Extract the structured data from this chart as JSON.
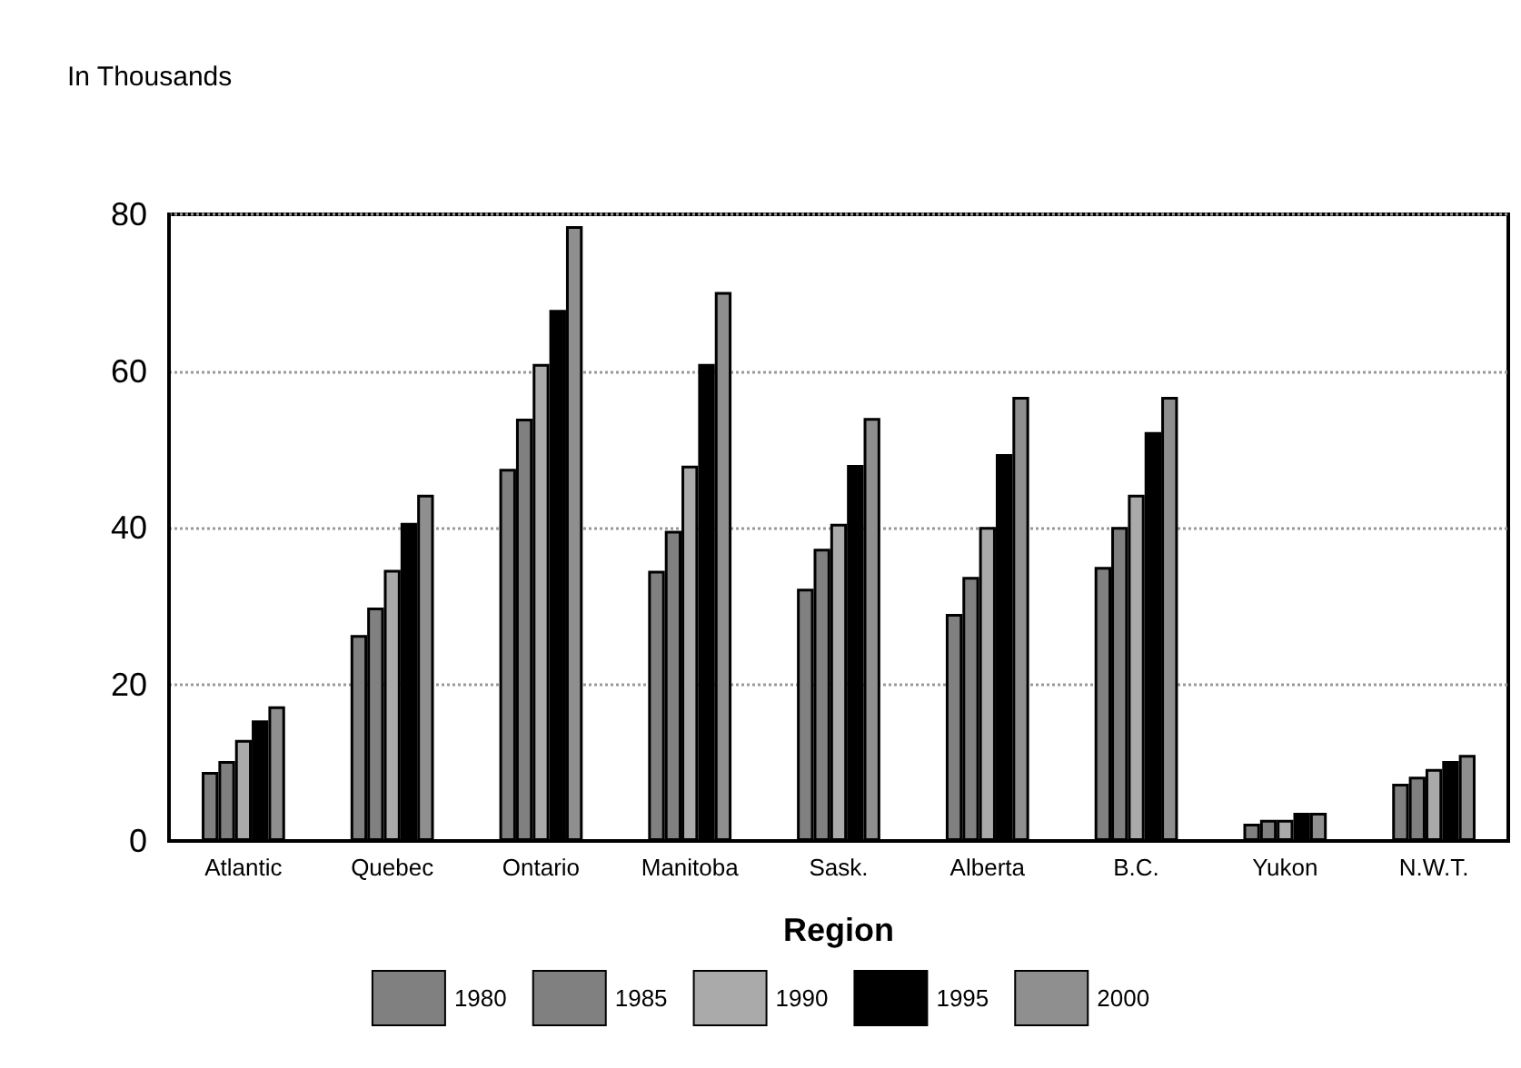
{
  "chart_data": {
    "type": "bar",
    "ylabel": "In Thousands",
    "xlabel": "Region",
    "categories": [
      "Atlantic",
      "Quebec",
      "Ontario",
      "Manitoba",
      "Sask.",
      "Alberta",
      "B.C.",
      "Yukon",
      "N.W.T."
    ],
    "series": [
      {
        "name": "1980",
        "color": "#808080",
        "values": [
          8.8,
          26.3,
          47.5,
          34.5,
          32.2,
          29.0,
          35.0,
          2.2,
          7.3
        ]
      },
      {
        "name": "1985",
        "color": "#808080",
        "values": [
          10.2,
          29.8,
          53.9,
          39.6,
          37.3,
          33.7,
          40.1,
          2.7,
          8.2
        ]
      },
      {
        "name": "1990",
        "color": "#aaaaaa",
        "values": [
          12.9,
          34.6,
          60.9,
          47.9,
          40.5,
          40.1,
          44.2,
          2.7,
          9.2
        ]
      },
      {
        "name": "1995",
        "color": "#000000",
        "values": [
          15.4,
          40.6,
          67.8,
          60.9,
          48.0,
          49.4,
          52.2,
          3.6,
          10.2
        ]
      },
      {
        "name": "2000",
        "color": "#8f8f8f",
        "values": [
          17.2,
          44.2,
          78.5,
          70.1,
          54.0,
          56.7,
          56.7,
          3.6,
          11.0
        ]
      }
    ],
    "ylim": [
      0,
      80
    ],
    "yticks": [
      0,
      20,
      40,
      60,
      80
    ],
    "grid": "y",
    "legend": "bottom"
  }
}
